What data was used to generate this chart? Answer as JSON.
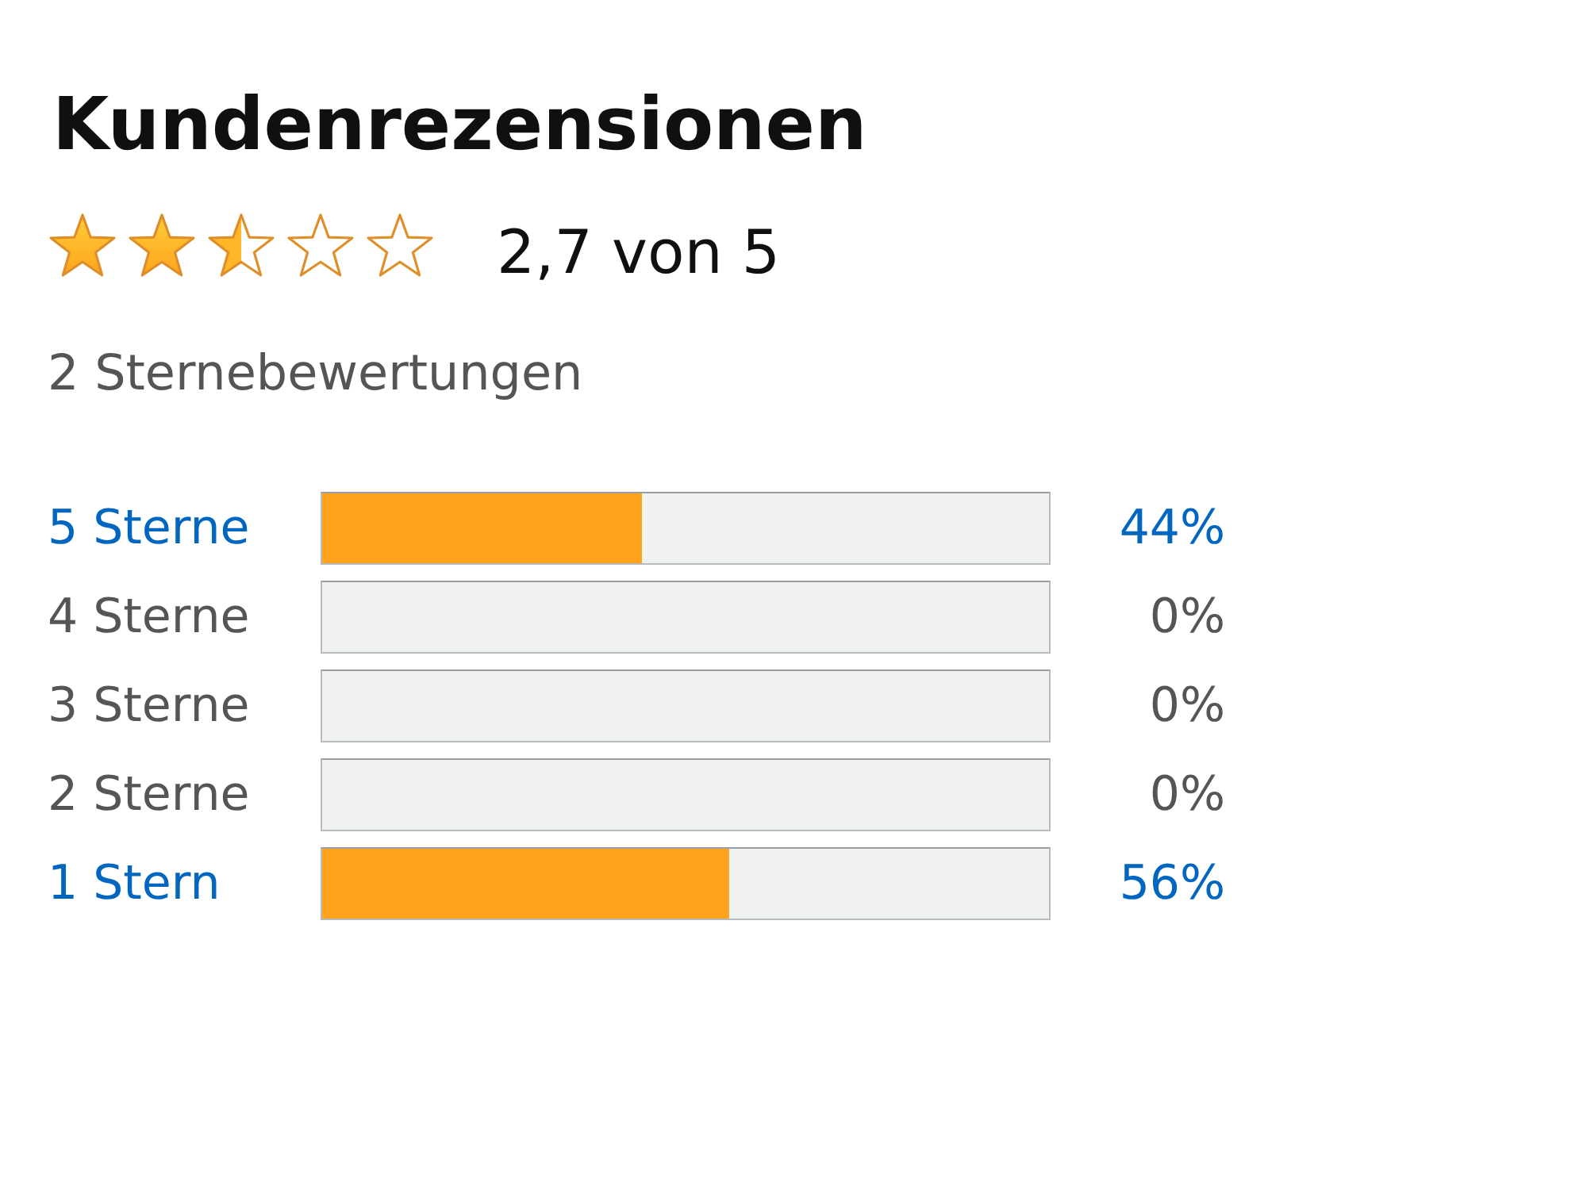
{
  "chart_data": {
    "type": "bar",
    "orientation": "horizontal",
    "stacked": true,
    "title": "Kundenrezensionen",
    "subtitle": "2,7 von 5",
    "annotations": [
      "2 Sternebewertungen"
    ],
    "categories": [
      "5 Sterne",
      "4 Sterne",
      "3 Sterne",
      "2 Sterne",
      "1 Stern"
    ],
    "series": [
      {
        "color": "#ffa41c",
        "values": [
          44,
          0,
          0,
          0,
          56
        ],
        "value_labels": [
          "44%",
          "0%",
          "0%",
          "0%",
          "56%"
        ]
      },
      {
        "color": "#f0f2f2",
        "values": [
          56,
          100,
          100,
          100,
          44
        ]
      }
    ],
    "xlim": [
      0,
      100
    ],
    "tick_labels": "y"
  }
}
